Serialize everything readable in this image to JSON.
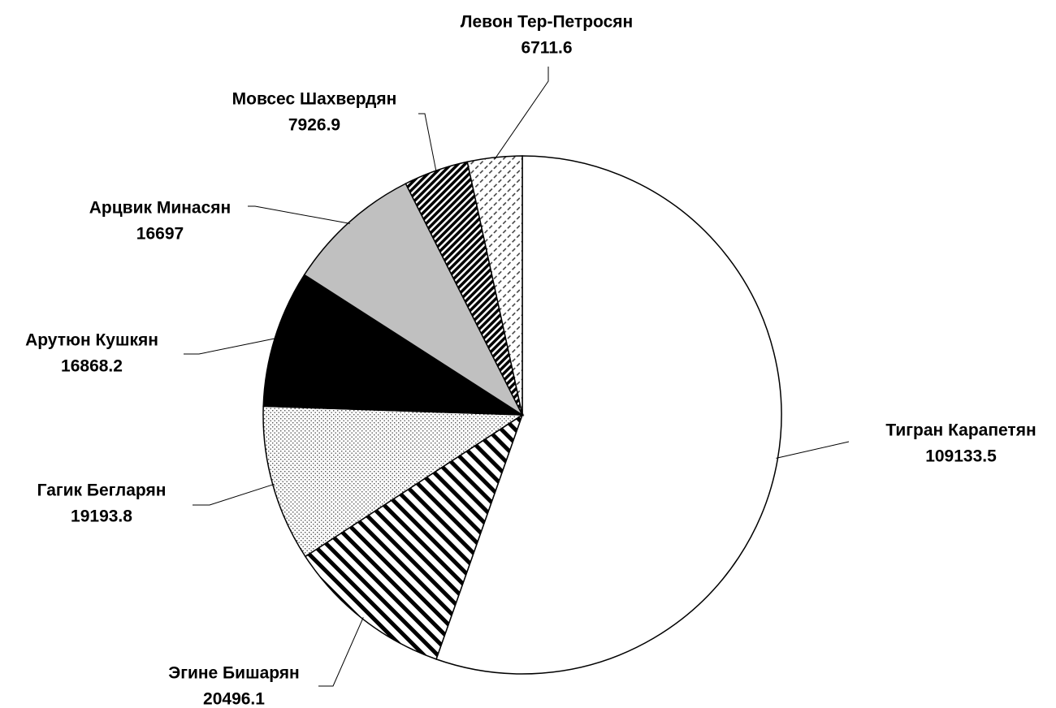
{
  "chart_data": {
    "type": "pie",
    "categories": [
      "Тигран Карапетян",
      "Эгине Бишарян",
      "Гагик Бегларян",
      "Арутюн Кушкян",
      "Арцвик Минасян",
      "Мовсес Шахвердян",
      "Левон Тер-Петросян"
    ],
    "values": [
      109133.5,
      20496.1,
      19193.8,
      16868.2,
      16697,
      7926.9,
      6711.6
    ],
    "colors": [
      "#ffffff",
      "url(#stripes)",
      "url(#dots)",
      "#000000",
      "#c0c0c0",
      "url(#hatch)",
      "url(#dashes)"
    ]
  }
}
